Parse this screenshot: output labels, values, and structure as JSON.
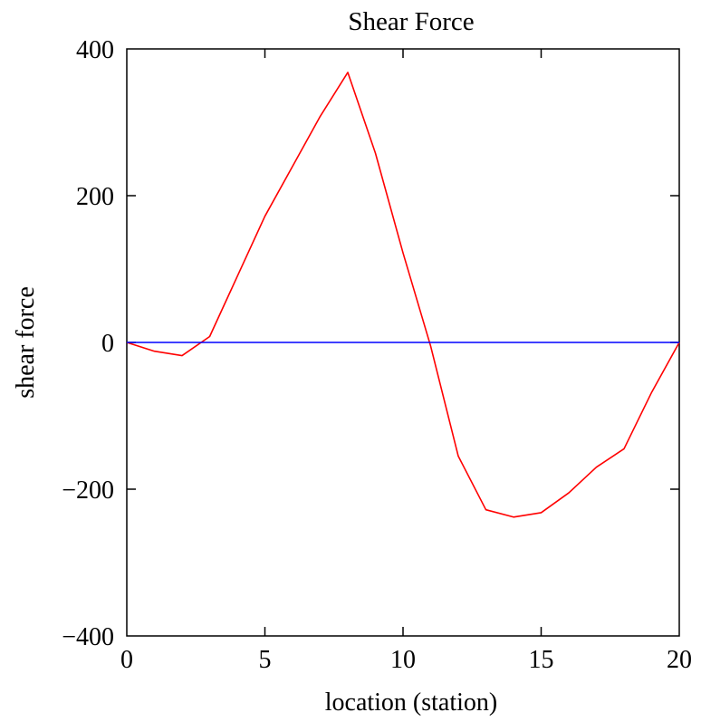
{
  "chart_data": {
    "type": "line",
    "title": "Shear Force",
    "xlabel": "location (station)",
    "ylabel": "shear force",
    "xlim": [
      0,
      20
    ],
    "ylim": [
      -400,
      400
    ],
    "x_ticks": [
      {
        "value": 0,
        "label": "0"
      },
      {
        "value": 5,
        "label": "5"
      },
      {
        "value": 10,
        "label": "10"
      },
      {
        "value": 15,
        "label": "15"
      },
      {
        "value": 20,
        "label": "20"
      }
    ],
    "y_ticks": [
      {
        "value": 400,
        "label": "400"
      },
      {
        "value": 200,
        "label": "200"
      },
      {
        "value": 0,
        "label": "0"
      },
      {
        "value": -200,
        "label": "−200"
      },
      {
        "value": -400,
        "label": "−400"
      }
    ],
    "grid": false,
    "series": [
      {
        "color": "#ff0000",
        "x": [
          0,
          1,
          2,
          3,
          4,
          5,
          6,
          7,
          8,
          9,
          10,
          11,
          12,
          13,
          14,
          15,
          16,
          17,
          18,
          19,
          20
        ],
        "y": [
          0,
          -12,
          -18,
          8,
          90,
          172,
          240,
          308,
          368,
          258,
          122,
          -5,
          -155,
          -228,
          -238,
          -232,
          -205,
          -170,
          -145,
          -68,
          0
        ]
      },
      {
        "color": "#0000ff",
        "x": [
          0,
          20
        ],
        "y": [
          0,
          0
        ]
      }
    ]
  }
}
